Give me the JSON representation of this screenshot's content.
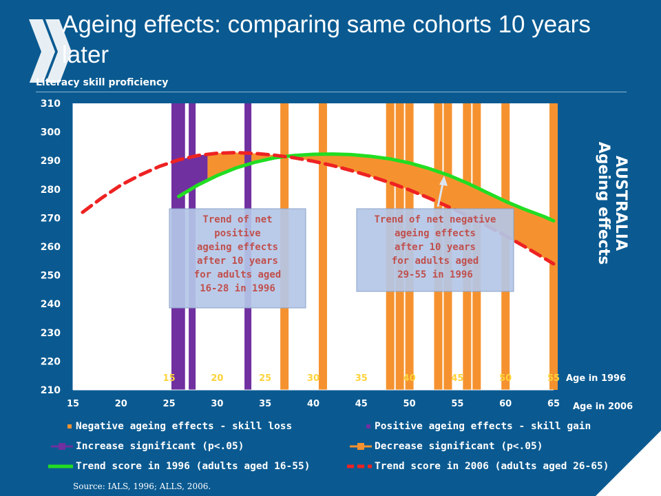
{
  "slide": {
    "title": "Ageing effects: comparing same cohorts 10 years later",
    "side_title_line1": "Ageing effects",
    "side_title_line2": "AUSTRALIA",
    "source": "Source: IALS, 1996; ALLS, 2006.",
    "colors": {
      "background": "#0a5a91",
      "orange": "#f5922f",
      "purple": "#7030a0",
      "green": "#22dd22",
      "red": "#ee2222",
      "callout": "#b4c7e7"
    }
  },
  "chart_data": {
    "type": "line",
    "ylabel": "Literacy skill proficiency",
    "ylim": [
      210,
      310
    ],
    "yticks": [
      210,
      220,
      230,
      240,
      250,
      260,
      270,
      280,
      290,
      300,
      310
    ],
    "x_label_2006": "Age in 2006",
    "xlim": [
      15,
      65
    ],
    "xticks_2006": [
      15,
      20,
      25,
      30,
      35,
      40,
      45,
      50,
      55,
      60,
      65
    ],
    "x_label_1996": "Age in 1996",
    "xticks_1996": [
      15,
      20,
      25,
      30,
      35,
      40,
      45,
      50,
      55
    ],
    "series": [
      {
        "name": "Trend score in 1996 (adults aged 16-55)",
        "color": "#22dd22",
        "style": "solid",
        "x": [
          26,
          28,
          30,
          32,
          34,
          36,
          38,
          40,
          42,
          44,
          46,
          48,
          50,
          52,
          54,
          56,
          58,
          60,
          62,
          64,
          65
        ],
        "y": [
          277.5,
          281.5,
          284.8,
          287.5,
          289.5,
          291,
          291.8,
          292.2,
          292.3,
          292.1,
          291.5,
          290.6,
          289.2,
          287.3,
          285,
          282.2,
          279,
          275.8,
          273,
          270.5,
          269
        ]
      },
      {
        "name": "Trend score in 2006 (adults aged 26-65)",
        "color": "#ee2222",
        "style": "dashed",
        "x": [
          16,
          18,
          20,
          22,
          24,
          26,
          28,
          30,
          32,
          34,
          36,
          38,
          40,
          42,
          44,
          46,
          48,
          50,
          52,
          54,
          56,
          58,
          60,
          62,
          64,
          65
        ],
        "y": [
          272,
          277,
          281.5,
          285,
          288,
          290.3,
          291.8,
          292.6,
          292.8,
          292.5,
          291.9,
          291,
          289.8,
          288.3,
          286.5,
          284.5,
          282.3,
          279.8,
          277,
          274,
          270.8,
          267.4,
          263.8,
          260,
          256,
          254
        ]
      }
    ],
    "positive_effect_bars": [
      {
        "x": 25.6,
        "color": "#7030a0"
      },
      {
        "x": 26.3,
        "color": "#7030a0"
      },
      {
        "x": 27.4,
        "color": "#7030a0"
      },
      {
        "x": 33.2,
        "color": "#7030a0"
      }
    ],
    "decrease_significant_bars": [
      {
        "x": 37
      },
      {
        "x": 41
      },
      {
        "x": 48
      },
      {
        "x": 49
      },
      {
        "x": 50
      },
      {
        "x": 53
      },
      {
        "x": 54
      },
      {
        "x": 56
      },
      {
        "x": 57
      },
      {
        "x": 60
      },
      {
        "x": 65
      }
    ],
    "annotations": [
      {
        "lines": [
          "Trend of net",
          "positive",
          "ageing effects",
          "after 10 years",
          "for adults aged",
          "16-28 in 1996"
        ]
      },
      {
        "lines": [
          "Trend of net negative",
          "ageing effects",
          "after 10 years",
          "for  adults aged",
          "29-55 in 1996"
        ]
      }
    ],
    "legend": [
      {
        "label": "Negative ageing effects - skill loss",
        "marker": "square",
        "color": "#f5922f"
      },
      {
        "label": "Positive ageing effects - skill gain",
        "marker": "square",
        "color": "#7030a0"
      },
      {
        "label": "Increase significant (p<.05)",
        "marker": "line-square",
        "color": "#7030a0"
      },
      {
        "label": "Decrease significant (p<.05)",
        "marker": "line-square",
        "color": "#f5922f"
      },
      {
        "label": "Trend score in 1996 (adults aged 16-55)",
        "marker": "line",
        "color": "#22dd22"
      },
      {
        "label": "Trend score in 2006 (adults aged 26-65)",
        "marker": "dashed-line",
        "color": "#ee2222"
      }
    ]
  }
}
